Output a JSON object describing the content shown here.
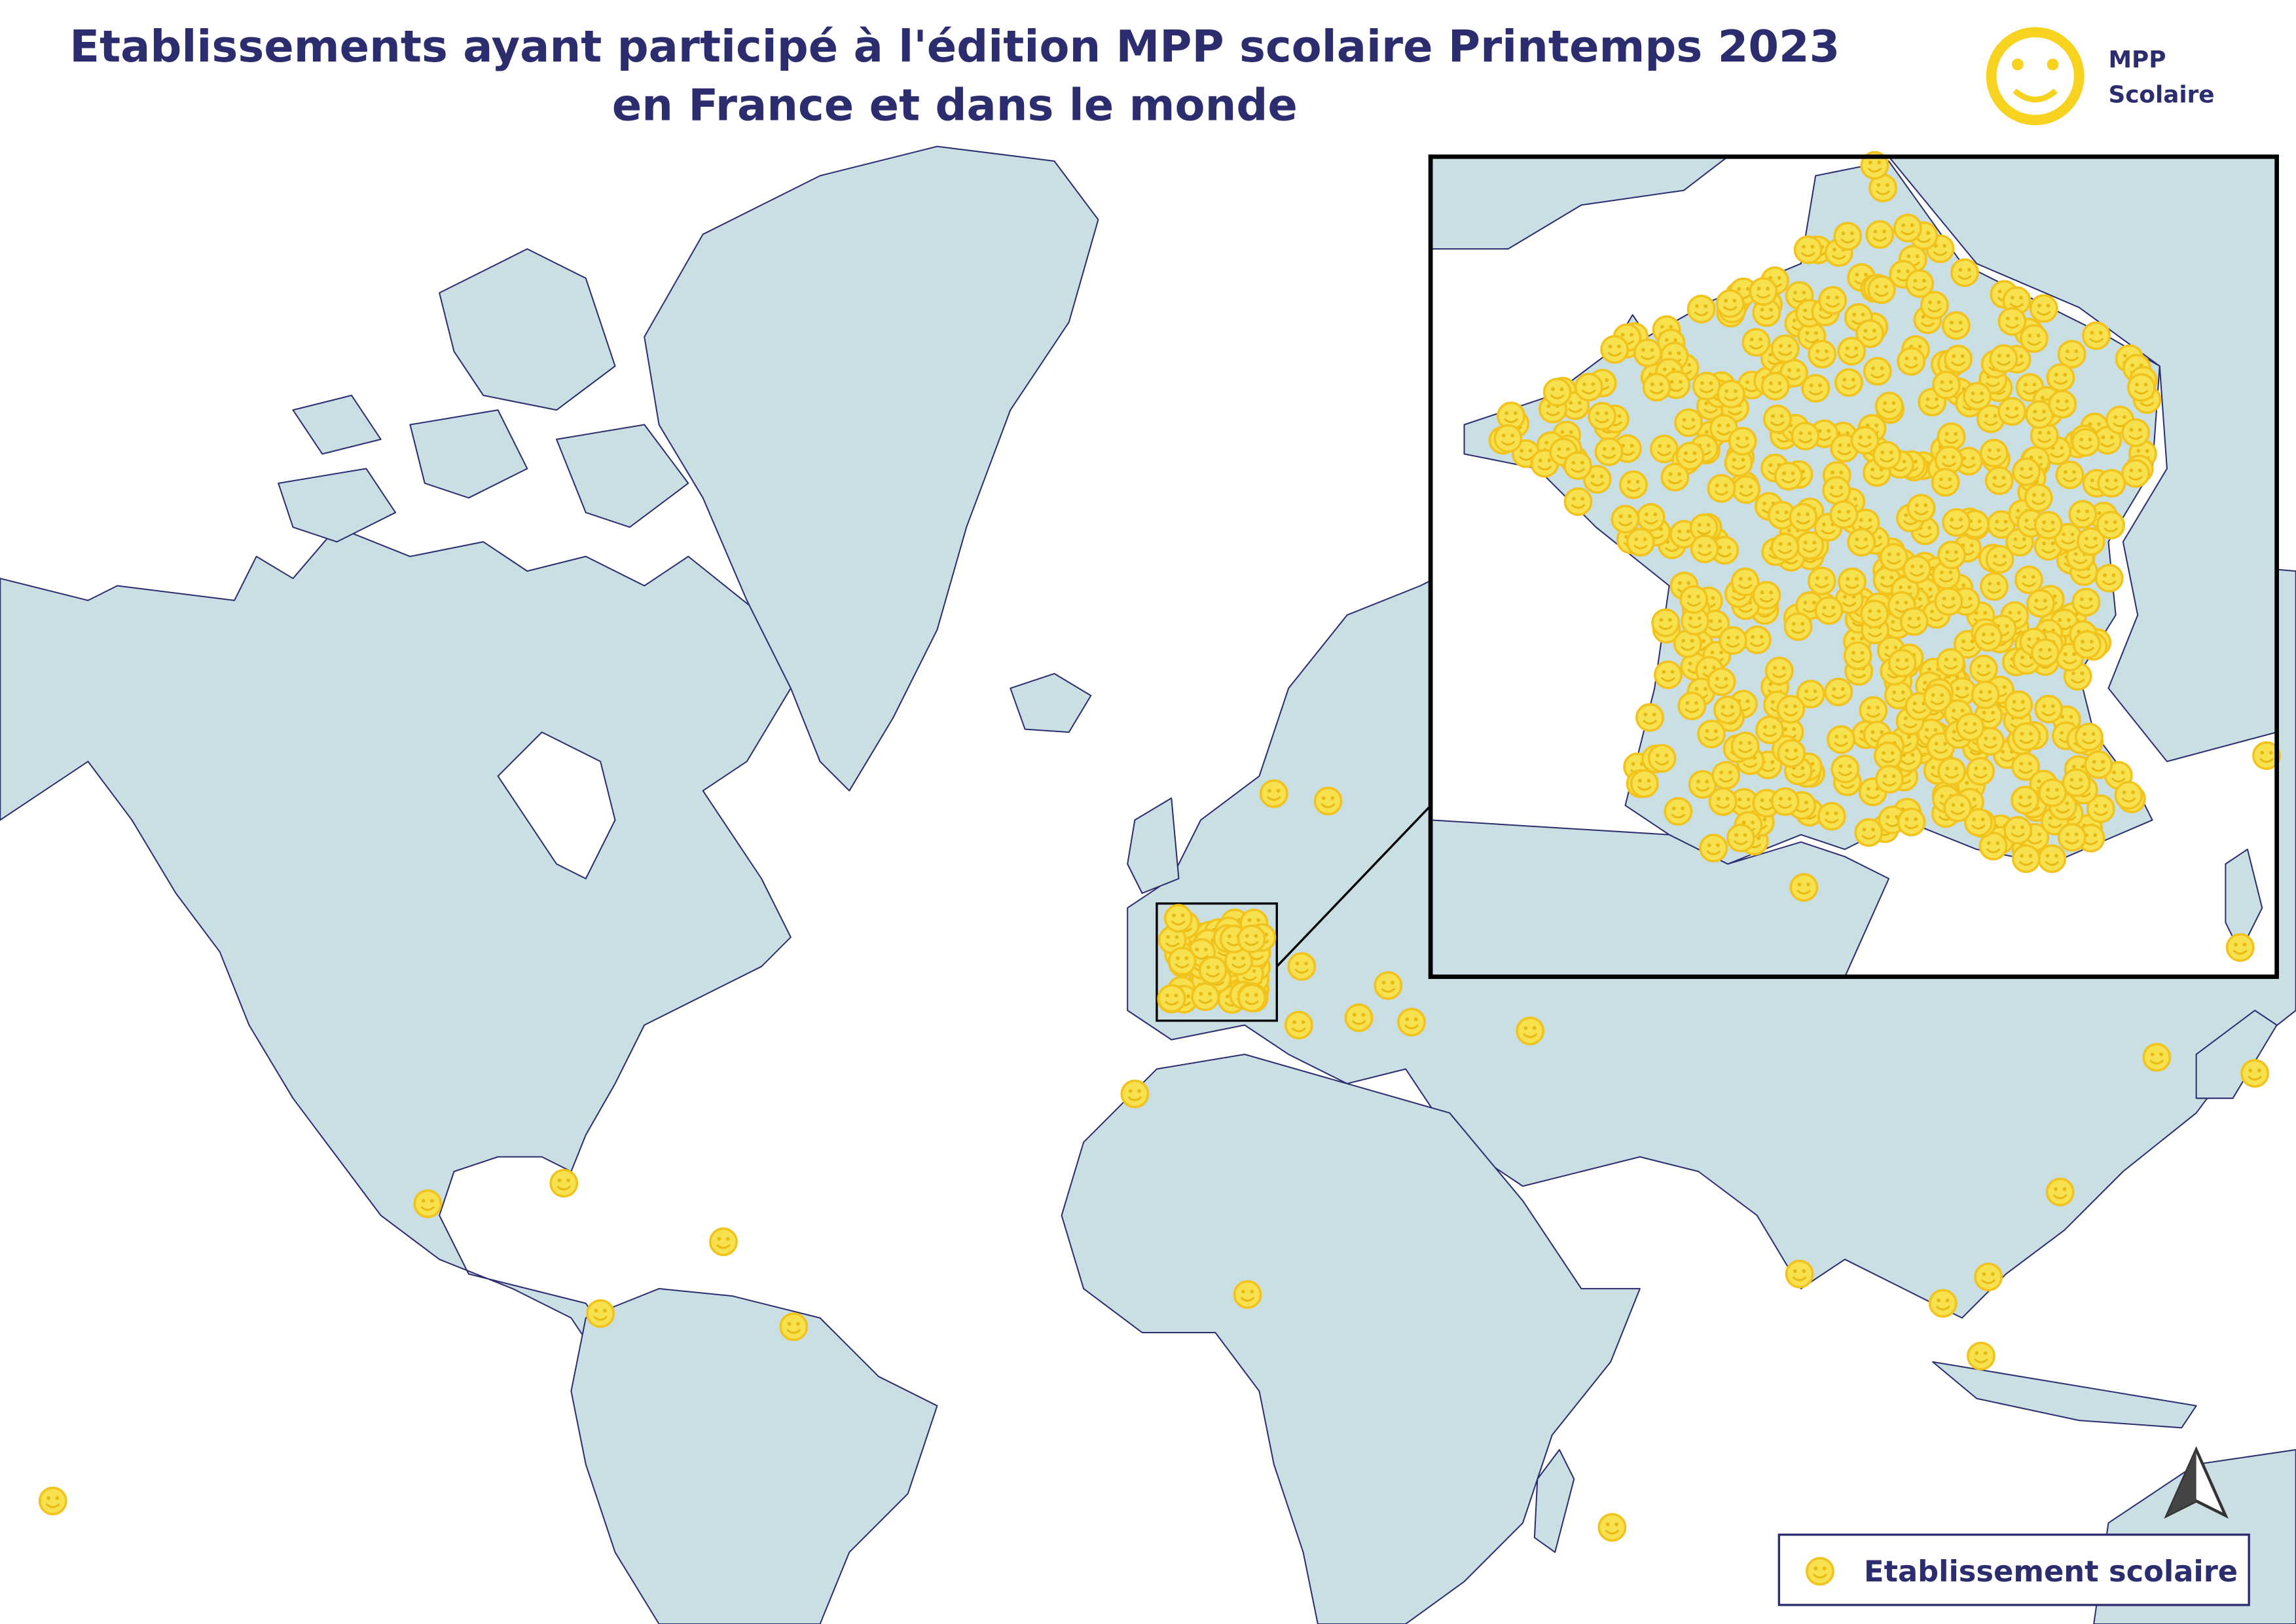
{
  "title": {
    "line1": "Etablissements ayant participé à l'édition MPP scolaire Printemps 2023",
    "line2": "en France et dans le monde"
  },
  "logo": {
    "line1": "MPP",
    "line2": "Scolaire"
  },
  "legend": {
    "label": "Etablissement scolaire"
  }
}
